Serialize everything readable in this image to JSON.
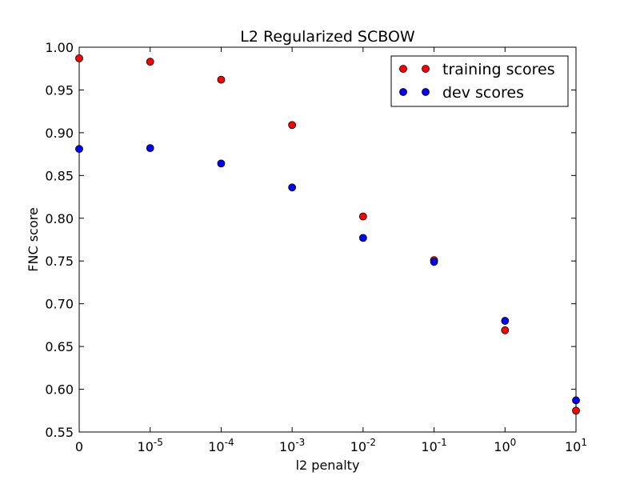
{
  "chart_data": {
    "type": "scatter",
    "title": "L2 Regularized SCBOW",
    "xlabel": "l2 penalty",
    "ylabel": "FNC score",
    "ylim": [
      0.55,
      1.0
    ],
    "y_ticks": [
      "0.55",
      "0.60",
      "0.65",
      "0.70",
      "0.75",
      "0.80",
      "0.85",
      "0.90",
      "0.95",
      "1.00"
    ],
    "x_ticks": [
      {
        "base": "0",
        "exp": ""
      },
      {
        "base": "10",
        "exp": "-5"
      },
      {
        "base": "10",
        "exp": "-4"
      },
      {
        "base": "10",
        "exp": "-3"
      },
      {
        "base": "10",
        "exp": "-2"
      },
      {
        "base": "10",
        "exp": "-1"
      },
      {
        "base": "10",
        "exp": "0"
      },
      {
        "base": "10",
        "exp": "1"
      }
    ],
    "x": [
      "0",
      "1e-5",
      "1e-4",
      "1e-3",
      "1e-2",
      "1e-1",
      "1",
      "10"
    ],
    "grid": false,
    "legend_position": "top-right",
    "series": [
      {
        "name": "training scores",
        "color": "#ff0000",
        "values": [
          0.987,
          0.983,
          0.962,
          0.909,
          0.802,
          0.751,
          0.669,
          0.575
        ]
      },
      {
        "name": "dev scores",
        "color": "#0000ff",
        "values": [
          0.881,
          0.882,
          0.864,
          0.836,
          0.777,
          0.749,
          0.68,
          0.587
        ]
      }
    ]
  }
}
